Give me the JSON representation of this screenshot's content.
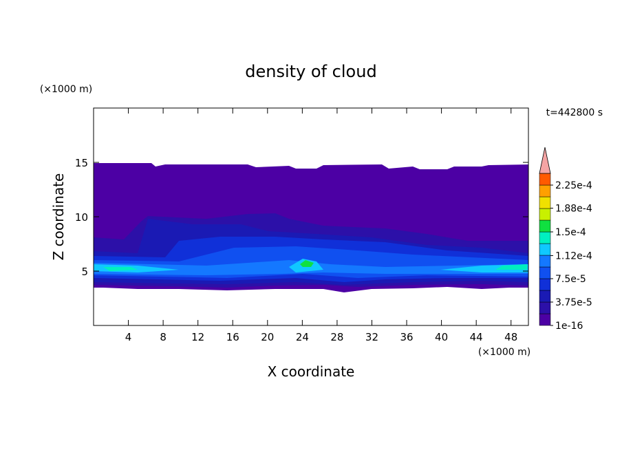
{
  "chart_data": {
    "type": "contour",
    "title": "density of cloud",
    "x_label": "X coordinate",
    "y_label": "Z coordinate",
    "x_unit": "(×1000 m)",
    "y_unit": "(×1000 m)",
    "time_label": "t=442800 s",
    "xlim": [
      0,
      50
    ],
    "ylim": [
      0,
      20
    ],
    "xticks": [
      4,
      8,
      12,
      16,
      20,
      24,
      28,
      32,
      36,
      40,
      44,
      48
    ],
    "yticks": [
      5,
      10,
      15
    ],
    "levels": [
      1e-16,
      1.875e-05,
      3.75e-05,
      5.625e-05,
      7.5e-05,
      9.375e-05,
      0.0001125,
      0.00013125,
      0.00015,
      0.00016875,
      0.0001875,
      0.00020625,
      0.000225,
      0.00024375
    ],
    "colors": [
      "#4c00a4",
      "#2c10a8",
      "#1a1ab4",
      "#1030d8",
      "#1050f0",
      "#1478ff",
      "#10c8ff",
      "#00f0c0",
      "#10e040",
      "#c8f000",
      "#f0e000",
      "#ffa000",
      "#ff5a00"
    ],
    "extend_color": "#f4a4a4",
    "colorbar_ticks": [
      {
        "value": 1e-16,
        "label": "1e-16"
      },
      {
        "value": 3.75e-05,
        "label": "3.75e-5"
      },
      {
        "value": 7.5e-05,
        "label": "7.5e-5"
      },
      {
        "value": 0.000112,
        "label": "1.12e-4"
      },
      {
        "value": 0.00015,
        "label": "1.5e-4"
      },
      {
        "value": 0.000188,
        "label": "1.88e-4"
      },
      {
        "value": 0.000225,
        "label": "2.25e-4"
      }
    ]
  }
}
